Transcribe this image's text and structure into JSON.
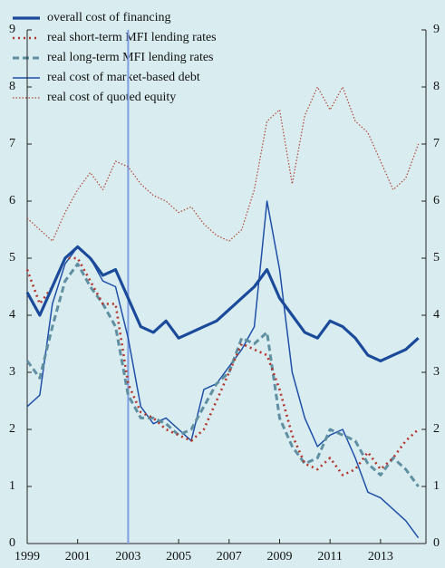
{
  "chart_data": {
    "type": "line",
    "x": [
      1999,
      1999.5,
      2000,
      2000.5,
      2001,
      2001.5,
      2002,
      2002.5,
      2003,
      2003.5,
      2004,
      2004.5,
      2005,
      2005.5,
      2006,
      2006.5,
      2007,
      2007.5,
      2008,
      2008.5,
      2009,
      2009.5,
      2010,
      2010.5,
      2011,
      2011.5,
      2012,
      2012.5,
      2013,
      2013.5,
      2014,
      2014.5
    ],
    "series": [
      {
        "name": "overall cost of financing",
        "color": "#1b4a9a",
        "width": 3.2,
        "dash": "none",
        "values": [
          4.4,
          4.0,
          4.5,
          5.0,
          5.2,
          5.0,
          4.7,
          4.8,
          4.3,
          3.8,
          3.7,
          3.9,
          3.6,
          3.7,
          3.8,
          3.9,
          4.1,
          4.3,
          4.5,
          4.8,
          4.3,
          4.0,
          3.7,
          3.6,
          3.9,
          3.8,
          3.6,
          3.3,
          3.2,
          3.3,
          3.4,
          3.6
        ]
      },
      {
        "name": "real short-term MFI lending rates",
        "color": "#b3362c",
        "width": 2.6,
        "dash": "2 4",
        "values": [
          4.8,
          4.2,
          4.5,
          5.0,
          5.0,
          4.6,
          4.2,
          4.2,
          2.8,
          2.3,
          2.2,
          2.0,
          1.9,
          1.8,
          2.0,
          2.5,
          3.0,
          3.5,
          3.4,
          3.3,
          2.7,
          1.9,
          1.4,
          1.3,
          1.5,
          1.2,
          1.3,
          1.6,
          1.3,
          1.5,
          1.8,
          2.0
        ]
      },
      {
        "name": "real long-term MFI lending rates",
        "color": "#5f8fa0",
        "width": 3,
        "dash": "7 4",
        "values": [
          3.2,
          2.9,
          3.8,
          4.6,
          4.9,
          4.5,
          4.2,
          3.8,
          2.6,
          2.2,
          2.2,
          2.1,
          1.9,
          2.0,
          2.4,
          2.8,
          3.0,
          3.6,
          3.5,
          3.7,
          2.2,
          1.7,
          1.4,
          1.5,
          2.0,
          1.9,
          1.8,
          1.4,
          1.2,
          1.5,
          1.3,
          1.0
        ]
      },
      {
        "name": "real cost of market-based debt",
        "color": "#1f4fa8",
        "width": 1.5,
        "dash": "none",
        "values": [
          2.4,
          2.6,
          4.2,
          4.9,
          5.2,
          5.0,
          4.6,
          4.5,
          3.6,
          2.4,
          2.1,
          2.2,
          2.0,
          1.8,
          2.7,
          2.8,
          3.1,
          3.4,
          3.8,
          6.0,
          4.8,
          3.0,
          2.2,
          1.7,
          1.9,
          2.0,
          1.5,
          0.9,
          0.8,
          0.6,
          0.4,
          0.1
        ]
      },
      {
        "name": "real cost of quoted equity",
        "color": "#b04434",
        "width": 1.2,
        "dash": "1.5 2",
        "values": [
          5.7,
          5.5,
          5.3,
          5.8,
          6.2,
          6.5,
          6.2,
          6.7,
          6.6,
          6.3,
          6.1,
          6.0,
          5.8,
          5.9,
          5.6,
          5.4,
          5.3,
          5.5,
          6.2,
          7.4,
          7.6,
          6.3,
          7.5,
          8.0,
          7.6,
          8.0,
          7.4,
          7.2,
          6.7,
          6.2,
          6.4,
          7.0
        ]
      }
    ],
    "xlim": [
      1999,
      2014.8
    ],
    "xticks": [
      1999,
      2001,
      2003,
      2005,
      2007,
      2009,
      2011,
      2013
    ],
    "ylim": [
      0,
      9
    ],
    "yticks": [
      0,
      1,
      2,
      3,
      4,
      5,
      6,
      7,
      8,
      9
    ],
    "y2lim": [
      0,
      9
    ],
    "y2ticks": [
      0,
      1,
      2,
      3,
      4,
      5,
      6,
      7,
      8,
      9
    ],
    "vlines": [
      2003
    ]
  }
}
